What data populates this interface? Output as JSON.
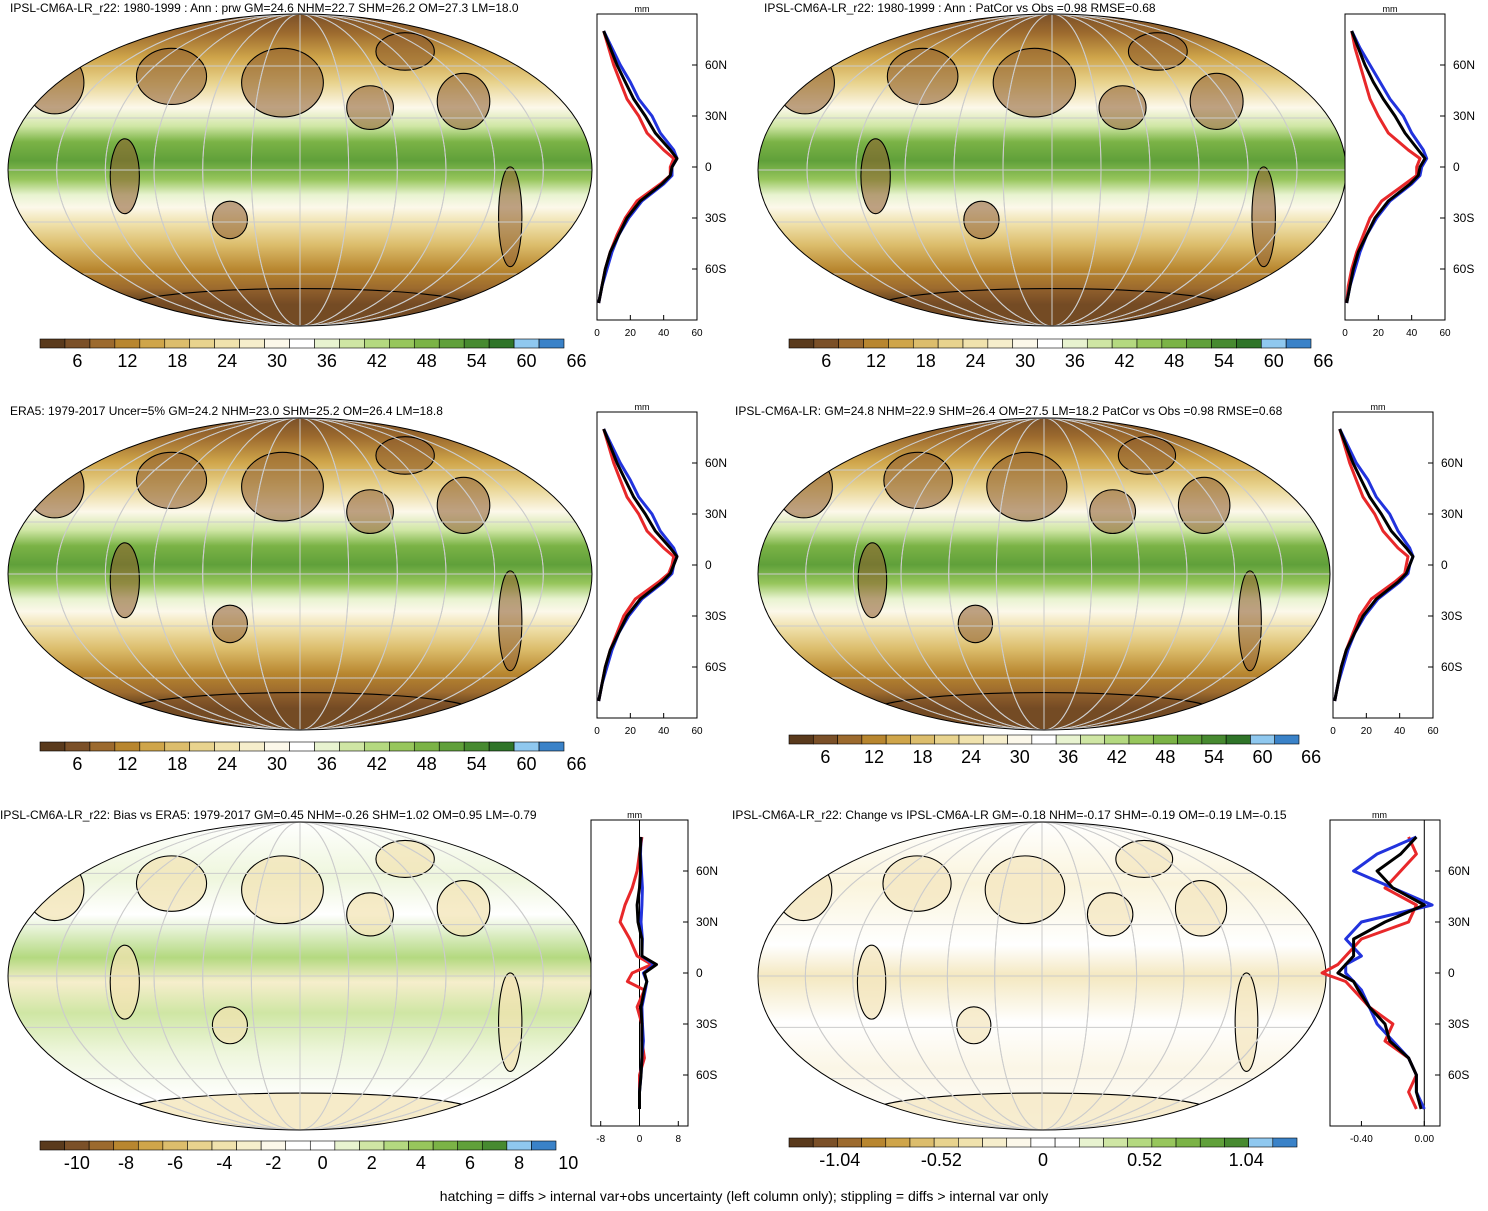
{
  "panels": [
    {
      "title": "IPSL-CM6A-LR_r22: 1980-1999 : Ann : prw GM=24.6 NHM=22.7 SHM=26.2 OM=27.3 LM=18.0",
      "kind": "abs",
      "colorbar_labels": [
        "6",
        "12",
        "18",
        "24",
        "30",
        "36",
        "42",
        "48",
        "54",
        "60",
        "66"
      ],
      "profile_xticks": [
        "0",
        "20",
        "40",
        "60"
      ],
      "profile_unit": "mm"
    },
    {
      "title": "IPSL-CM6A-LR_r22: 1980-1999 : Ann : PatCor vs Obs =0.98 RMSE=0.68",
      "kind": "abs",
      "colorbar_labels": [
        "6",
        "12",
        "18",
        "24",
        "30",
        "36",
        "42",
        "48",
        "54",
        "60",
        "66"
      ],
      "profile_xticks": [
        "0",
        "20",
        "40",
        "60"
      ],
      "profile_unit": "mm"
    },
    {
      "title": "ERA5: 1979-2017 Uncer=5% GM=24.2 NHM=23.0 SHM=25.2 OM=26.4 LM=18.8",
      "kind": "abs",
      "colorbar_labels": [
        "6",
        "12",
        "18",
        "24",
        "30",
        "36",
        "42",
        "48",
        "54",
        "60",
        "66"
      ],
      "profile_xticks": [
        "0",
        "20",
        "40",
        "60"
      ],
      "profile_unit": "mm"
    },
    {
      "title": "IPSL-CM6A-LR: GM=24.8 NHM=22.9 SHM=26.4 OM=27.5 LM=18.2 PatCor vs Obs =0.98 RMSE=0.68",
      "kind": "abs",
      "colorbar_labels": [
        "6",
        "12",
        "18",
        "24",
        "30",
        "36",
        "42",
        "48",
        "54",
        "60",
        "66"
      ],
      "profile_xticks": [
        "0",
        "20",
        "40",
        "60"
      ],
      "profile_unit": "mm"
    },
    {
      "title": "IPSL-CM6A-LR_r22: Bias vs ERA5: 1979-2017 GM=0.45 NHM=-0.26 SHM=1.02 OM=0.95 LM=-0.79",
      "kind": "bias",
      "colorbar_labels": [
        "-10",
        "-8",
        "-6",
        "-4",
        "-2",
        "0",
        "2",
        "4",
        "6",
        "8",
        "10"
      ],
      "profile_xticks": [
        "-8",
        "0",
        "8"
      ],
      "profile_unit": "mm"
    },
    {
      "title": "IPSL-CM6A-LR_r22: Change vs IPSL-CM6A-LR GM=-0.18 NHM=-0.17 SHM=-0.19 OM=-0.19 LM=-0.15",
      "kind": "change",
      "colorbar_labels": [
        "-1.04",
        "-0.52",
        "0",
        "0.52",
        "1.04"
      ],
      "profile_xticks": [
        "-0.40",
        "0.00"
      ],
      "profile_unit": "mm"
    }
  ],
  "profile_yticks": [
    "60N",
    "30N",
    "0",
    "30S",
    "60S"
  ],
  "colors": {
    "brown_to_green_blue": [
      "#5a3a1c",
      "#7b5028",
      "#9c6a2e",
      "#b8862f",
      "#cfa54a",
      "#dcbd6c",
      "#e8d38e",
      "#f0e2ad",
      "#f6eecc",
      "#fcf8ea",
      "#ffffff",
      "#e8f3d0",
      "#cfe6a4",
      "#b4d980",
      "#97c65c",
      "#7bb346",
      "#60a03a",
      "#478a30",
      "#2f7428",
      "#8fc8ef",
      "#3a82c8"
    ],
    "model_line": "#e8282a",
    "obs_line": "#2233dd",
    "ref_line": "#000000",
    "land_outline": "#000000"
  },
  "chart_data": [
    {
      "type": "line",
      "title": "IPSL-CM6A-LR_r22: 1980-1999 : Ann : prw GM=24.6 NHM=22.7 SHM=26.2 OM=27.3 LM=18.0",
      "xlabel": "mm",
      "xlim": [
        0,
        60
      ],
      "ylim": [
        -90,
        90
      ],
      "y": [
        80,
        70,
        60,
        50,
        40,
        30,
        20,
        10,
        5,
        0,
        -5,
        -10,
        -20,
        -30,
        -40,
        -50,
        -60,
        -70,
        -80
      ],
      "series": [
        {
          "color": "red",
          "values": [
            4,
            7,
            10,
            14,
            18,
            25,
            30,
            40,
            46,
            44,
            44,
            38,
            24,
            17,
            12,
            8,
            5,
            3,
            1
          ]
        },
        {
          "color": "blue",
          "values": [
            4,
            9,
            14,
            20,
            25,
            33,
            38,
            46,
            48,
            45,
            45,
            40,
            27,
            19,
            13,
            9,
            6,
            3,
            1
          ]
        },
        {
          "color": "black",
          "values": [
            4,
            8,
            12,
            17,
            22,
            29,
            35,
            44,
            48,
            45,
            44,
            39,
            26,
            18,
            13,
            8,
            5,
            3,
            1
          ]
        }
      ]
    },
    {
      "type": "line",
      "title": "IPSL-CM6A-LR_r22: 1980-1999 : Ann : PatCor vs Obs =0.98 RMSE=0.68",
      "xlabel": "mm",
      "xlim": [
        0,
        60
      ],
      "ylim": [
        -90,
        90
      ],
      "y": [
        80,
        70,
        60,
        50,
        40,
        30,
        20,
        10,
        5,
        0,
        -5,
        -10,
        -20,
        -30,
        -40,
        -50,
        -60,
        -70,
        -80
      ],
      "series": [
        {
          "color": "red",
          "values": [
            4,
            6,
            9,
            12,
            15,
            20,
            26,
            38,
            45,
            43,
            43,
            36,
            22,
            15,
            11,
            7,
            4,
            2,
            1
          ]
        },
        {
          "color": "blue",
          "values": [
            4,
            9,
            15,
            21,
            27,
            35,
            40,
            47,
            49,
            46,
            45,
            40,
            27,
            19,
            13,
            9,
            6,
            3,
            1
          ]
        },
        {
          "color": "black",
          "values": [
            4,
            8,
            12,
            17,
            23,
            30,
            36,
            44,
            48,
            45,
            44,
            39,
            26,
            18,
            13,
            8,
            5,
            3,
            1
          ]
        }
      ]
    },
    {
      "type": "line",
      "title": "ERA5: 1979-2017 Uncer=5% GM=24.2 NHM=23.0 SHM=25.2 OM=26.4 LM=18.8",
      "xlabel": "mm",
      "xlim": [
        0,
        60
      ],
      "ylim": [
        -90,
        90
      ],
      "y": [
        80,
        70,
        60,
        50,
        40,
        30,
        20,
        10,
        5,
        0,
        -5,
        -10,
        -20,
        -30,
        -40,
        -50,
        -60,
        -70,
        -80
      ],
      "series": [
        {
          "color": "red",
          "values": [
            4,
            7,
            10,
            14,
            18,
            25,
            30,
            40,
            46,
            45,
            43,
            37,
            23,
            16,
            12,
            8,
            5,
            3,
            1
          ]
        },
        {
          "color": "blue",
          "values": [
            4,
            9,
            14,
            20,
            25,
            33,
            38,
            46,
            48,
            46,
            45,
            40,
            27,
            19,
            13,
            9,
            6,
            3,
            1
          ]
        },
        {
          "color": "black",
          "values": [
            4,
            8,
            12,
            17,
            22,
            29,
            35,
            44,
            48,
            46,
            44,
            39,
            26,
            18,
            13,
            8,
            5,
            3,
            1
          ]
        }
      ]
    },
    {
      "type": "line",
      "title": "IPSL-CM6A-LR: GM=24.8 NHM=22.9 SHM=26.4 OM=27.5 LM=18.2 PatCor vs Obs =0.98 RMSE=0.68",
      "xlabel": "mm",
      "xlim": [
        0,
        60
      ],
      "ylim": [
        -90,
        90
      ],
      "y": [
        80,
        70,
        60,
        50,
        40,
        30,
        20,
        10,
        5,
        0,
        -5,
        -10,
        -20,
        -30,
        -40,
        -50,
        -60,
        -70,
        -80
      ],
      "series": [
        {
          "color": "red",
          "values": [
            4,
            7,
            10,
            14,
            18,
            25,
            30,
            39,
            45,
            44,
            43,
            37,
            23,
            16,
            12,
            8,
            5,
            3,
            1
          ]
        },
        {
          "color": "blue",
          "values": [
            4,
            9,
            14,
            21,
            26,
            34,
            39,
            46,
            48,
            46,
            45,
            40,
            27,
            19,
            13,
            9,
            6,
            3,
            1
          ]
        },
        {
          "color": "black",
          "values": [
            4,
            8,
            12,
            17,
            22,
            29,
            35,
            44,
            48,
            46,
            44,
            39,
            26,
            18,
            13,
            8,
            5,
            3,
            1
          ]
        }
      ]
    },
    {
      "type": "line",
      "title": "IPSL-CM6A-LR_r22: Bias vs ERA5: 1979-2017 GM=0.45 NHM=-0.26 SHM=1.02 OM=0.95 LM=-0.79",
      "xlabel": "mm",
      "xlim": [
        -10,
        10
      ],
      "ylim": [
        -90,
        90
      ],
      "y": [
        80,
        70,
        60,
        50,
        40,
        30,
        20,
        10,
        5,
        0,
        -5,
        -10,
        -20,
        -30,
        -40,
        -50,
        -60,
        -70,
        -80
      ],
      "series": [
        {
          "color": "red",
          "values": [
            0.5,
            0,
            -0.5,
            -1.5,
            -3,
            -4,
            -2,
            -0.5,
            2.5,
            -1.5,
            -2.5,
            1,
            -0.5,
            0.5,
            0.5,
            1,
            0,
            0,
            0
          ]
        },
        {
          "color": "blue",
          "values": [
            0.3,
            0.2,
            0.4,
            0.6,
            0.5,
            0.3,
            0.6,
            0.5,
            3,
            0.8,
            1.5,
            1.2,
            0.5,
            0.6,
            0.8,
            0.5,
            0.3,
            0,
            0
          ]
        },
        {
          "color": "black",
          "values": [
            0.3,
            0.1,
            0.2,
            0,
            -0.5,
            -0.3,
            0.5,
            0.5,
            3.5,
            1,
            1.5,
            1,
            0.3,
            0.5,
            0.5,
            0.5,
            0.3,
            0,
            0
          ]
        }
      ]
    },
    {
      "type": "line",
      "title": "IPSL-CM6A-LR_r22: Change vs IPSL-CM6A-LR GM=-0.18 NHM=-0.17 SHM=-0.19 OM=-0.19 LM=-0.15",
      "xlabel": "mm",
      "xlim": [
        -0.6,
        0.1
      ],
      "ylim": [
        -90,
        90
      ],
      "y": [
        80,
        70,
        60,
        50,
        40,
        30,
        20,
        10,
        5,
        0,
        -5,
        -10,
        -20,
        -30,
        -40,
        -50,
        -60,
        -70,
        -80
      ],
      "series": [
        {
          "color": "red",
          "values": [
            -0.1,
            -0.05,
            -0.15,
            -0.25,
            -0.05,
            -0.1,
            -0.4,
            -0.5,
            -0.55,
            -0.65,
            -0.5,
            -0.45,
            -0.35,
            -0.2,
            -0.25,
            -0.1,
            -0.05,
            -0.1,
            -0.05
          ]
        },
        {
          "color": "blue",
          "values": [
            -0.05,
            -0.3,
            -0.45,
            -0.2,
            0.05,
            -0.4,
            -0.5,
            -0.4,
            -0.5,
            -0.5,
            -0.45,
            -0.4,
            -0.35,
            -0.3,
            -0.2,
            -0.1,
            -0.05,
            -0.05,
            0
          ]
        },
        {
          "color": "black",
          "values": [
            -0.05,
            -0.15,
            -0.3,
            -0.2,
            0,
            -0.25,
            -0.45,
            -0.45,
            -0.5,
            -0.55,
            -0.45,
            -0.42,
            -0.35,
            -0.25,
            -0.22,
            -0.1,
            -0.05,
            -0.05,
            -0.02
          ]
        }
      ]
    }
  ],
  "footer": "hatching = diffs > internal var+obs uncertainty (left column only); stippling = diffs > internal var only"
}
